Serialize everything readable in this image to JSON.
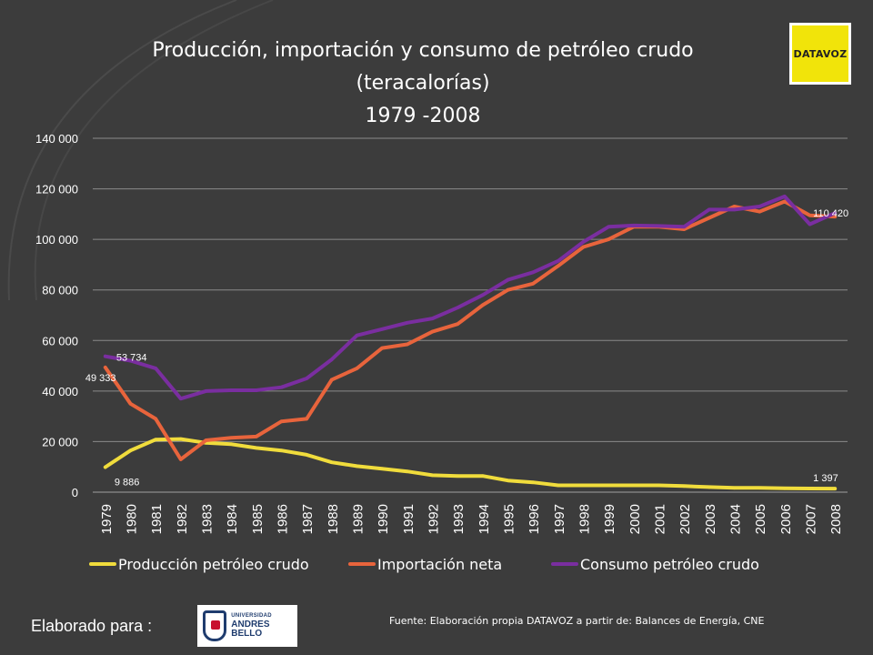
{
  "title": {
    "line1": "Producción, importación y consumo de petróleo crudo",
    "line2": "(teracalorías)",
    "line3": "1979 -2008"
  },
  "logo": {
    "brand": "DATAVOZ"
  },
  "footer": {
    "prepared_for": "Elaborado para :",
    "university_top": "UNIVERSIDAD",
    "university_name": "ANDRES BELLO",
    "source": "Fuente: Elaboración propia DATAVOZ a partir de: Balances de Energía, CNE"
  },
  "colors": {
    "background": "#3c3c3c",
    "production": "#f0dc3c",
    "imports": "#e8643c",
    "consumption": "#7a2ea0",
    "grid": "#8a8a8a",
    "text": "#ffffff"
  },
  "chart_data": {
    "type": "line",
    "title": "Producción, importación y consumo de petróleo crudo (teracalorías) 1979 -2008",
    "xlabel": "",
    "ylabel": "",
    "ylim": [
      0,
      140000
    ],
    "yticks": [
      0,
      20000,
      40000,
      60000,
      80000,
      100000,
      120000,
      140000
    ],
    "ytick_labels": [
      "0",
      "20 000",
      "40 000",
      "60 000",
      "80 000",
      "100 000",
      "120 000",
      "140 000"
    ],
    "grid": true,
    "legend": "bottom",
    "x": [
      "1979",
      "1980",
      "1981",
      "1982",
      "1983",
      "1984",
      "1985",
      "1986",
      "1987",
      "1988",
      "1989",
      "1990",
      "1991",
      "1992",
      "1993",
      "1994",
      "1995",
      "1996",
      "1997",
      "1998",
      "1999",
      "2000",
      "2001",
      "2002",
      "2003",
      "2004",
      "2005",
      "2006",
      "2007",
      "2008"
    ],
    "series": [
      {
        "name": "Producción petróleo crudo",
        "color": "#f0dc3c",
        "values": [
          9886,
          16500,
          20800,
          21000,
          19500,
          19000,
          17500,
          16500,
          14800,
          11800,
          10300,
          9300,
          8200,
          6700,
          6400,
          6400,
          4600,
          3900,
          2700,
          2700,
          2700,
          2700,
          2700,
          2400,
          2000,
          1700,
          1700,
          1500,
          1450,
          1397
        ]
      },
      {
        "name": "Importación neta",
        "color": "#e8643c",
        "values": [
          49333,
          35000,
          29000,
          13000,
          20500,
          21500,
          22000,
          28000,
          29000,
          44500,
          49000,
          57000,
          58500,
          63500,
          66500,
          74000,
          80000,
          82500,
          89500,
          97000,
          100000,
          105000,
          105000,
          104000,
          108500,
          113000,
          111000,
          115000,
          109500,
          109000
        ]
      },
      {
        "name": "Consumo  petróleo crudo",
        "color": "#7a2ea0",
        "values": [
          53734,
          52000,
          49000,
          37000,
          40000,
          40300,
          40300,
          41500,
          45000,
          52500,
          62000,
          64500,
          67000,
          68700,
          73000,
          78000,
          84000,
          87000,
          91500,
          99000,
          105000,
          105500,
          105300,
          105000,
          111800,
          111800,
          113000,
          117000,
          106000,
          110420
        ]
      }
    ],
    "annotations": [
      {
        "series": 2,
        "index": 0,
        "text": "53 734"
      },
      {
        "series": 1,
        "index": 0,
        "text": "49 333"
      },
      {
        "series": 0,
        "index": 0,
        "text": "9 886"
      },
      {
        "series": 2,
        "index": 29,
        "text": "110 420"
      },
      {
        "series": 0,
        "index": 29,
        "text": "1 397"
      }
    ]
  }
}
